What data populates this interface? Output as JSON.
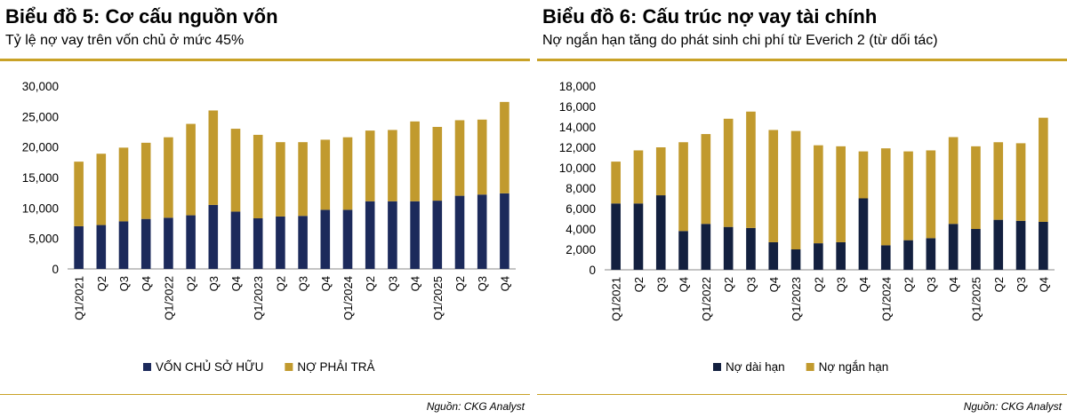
{
  "colors": {
    "accent_gold": "#c9a227",
    "series_dark": "#1c2a5b",
    "series_darker": "#13203f",
    "series_gold": "#c19a2e"
  },
  "chart_data": [
    {
      "type": "bar",
      "stacked": true,
      "title": "Biểu đồ 5: Cơ cấu nguồn vốn",
      "subtitle": "Tỷ lệ nợ vay trên vốn chủ ở mức 45%",
      "source": "Nguồn: CKG Analyst",
      "categories": [
        "Q1/2021",
        "Q2",
        "Q3",
        "Q4",
        "Q1/2022",
        "Q2",
        "Q3",
        "Q4",
        "Q1/2023",
        "Q2",
        "Q3",
        "Q4",
        "Q1/2024",
        "Q2",
        "Q3",
        "Q4",
        "Q1/2025",
        "Q2",
        "Q3",
        "Q4"
      ],
      "ylim": [
        0,
        30000
      ],
      "yticks": [
        0,
        5000,
        10000,
        15000,
        20000,
        25000,
        30000
      ],
      "ytick_labels": [
        "0",
        "5,000",
        "10,000",
        "15,000",
        "20,000",
        "25,000",
        "30,000"
      ],
      "grid": false,
      "legend_position": "bottom",
      "series": [
        {
          "name": "VỐN CHỦ SỞ HỮU",
          "color": "#1c2a5b",
          "values": [
            7000,
            7200,
            7800,
            8200,
            8400,
            8800,
            10500,
            9400,
            8300,
            8600,
            8700,
            9700,
            9700,
            11100,
            11100,
            11100,
            11200,
            12000,
            12200,
            12400
          ]
        },
        {
          "name": "NỢ PHẢI TRẢ",
          "color": "#c19a2e",
          "values": [
            10600,
            11700,
            12100,
            12500,
            13200,
            15000,
            15500,
            13600,
            13700,
            12200,
            12100,
            11500,
            11900,
            11600,
            11700,
            13100,
            12100,
            12400,
            12300,
            15000
          ]
        }
      ]
    },
    {
      "type": "bar",
      "stacked": true,
      "title": "Biểu đồ 6: Cấu trúc nợ vay tài chính",
      "subtitle": "Nợ ngắn hạn tăng do phát sinh chi phí từ Everich 2 (từ dối tác)",
      "source": "Nguồn: CKG Analyst",
      "categories": [
        "Q1/2021",
        "Q2",
        "Q3",
        "Q4",
        "Q1/2022",
        "Q2",
        "Q3",
        "Q4",
        "Q1/2023",
        "Q2",
        "Q3",
        "Q4",
        "Q1/2024",
        "Q2",
        "Q3",
        "Q4",
        "Q1/2025",
        "Q2",
        "Q3",
        "Q4"
      ],
      "ylim": [
        0,
        18000
      ],
      "yticks": [
        0,
        2000,
        4000,
        6000,
        8000,
        10000,
        12000,
        14000,
        16000,
        18000
      ],
      "ytick_labels": [
        "0",
        "2,000",
        "4,000",
        "6,000",
        "8,000",
        "10,000",
        "12,000",
        "14,000",
        "16,000",
        "18,000"
      ],
      "grid": false,
      "legend_position": "bottom",
      "series": [
        {
          "name": "Nợ dài hạn",
          "color": "#13203f",
          "values": [
            6500,
            6500,
            7300,
            3800,
            4500,
            4200,
            4100,
            2700,
            2000,
            2600,
            2700,
            7000,
            2400,
            2900,
            3100,
            4500,
            4000,
            4900,
            4800,
            4700
          ]
        },
        {
          "name": "Nợ ngắn hạn",
          "color": "#c19a2e",
          "values": [
            4100,
            5200,
            4700,
            8700,
            8800,
            10600,
            11400,
            11000,
            11600,
            9600,
            9400,
            4600,
            9500,
            8700,
            8600,
            8500,
            8100,
            7600,
            7600,
            10200
          ]
        }
      ]
    }
  ]
}
